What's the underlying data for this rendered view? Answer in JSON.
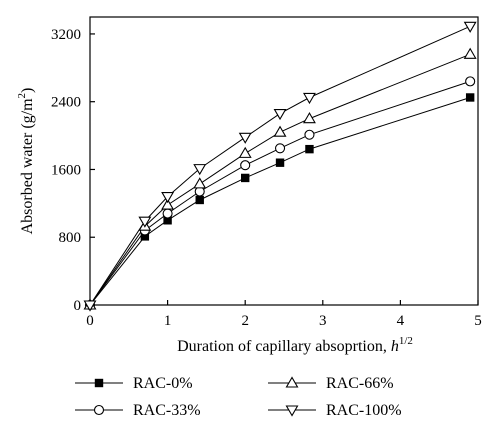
{
  "chart_data": {
    "type": "line",
    "xlabel_main": "Duration of capillary absoprtion, ",
    "xlabel_var": "h",
    "xlabel_exp": "1/2",
    "ylabel_main": "Absorbed water (g/m",
    "ylabel_sup": "2",
    "ylabel_end": ")",
    "xlim": [
      0,
      5
    ],
    "ylim": [
      0,
      3400
    ],
    "xticks": [
      "0",
      "1",
      "2",
      "3",
      "4",
      "5"
    ],
    "yticks": [
      "0",
      "800",
      "1600",
      "2400",
      "3200"
    ],
    "grid": false,
    "legend_position": "bottom",
    "series": [
      {
        "name": "RAC-0%",
        "marker": "filled-square",
        "x": [
          0,
          0.707,
          1,
          1.414,
          2,
          2.449,
          2.828,
          4.899
        ],
        "y": [
          0,
          810,
          1000,
          1240,
          1500,
          1680,
          1840,
          2450
        ]
      },
      {
        "name": "RAC-33%",
        "marker": "open-circle",
        "x": [
          0,
          0.707,
          1,
          1.414,
          2,
          2.449,
          2.828,
          4.899
        ],
        "y": [
          0,
          880,
          1080,
          1340,
          1650,
          1850,
          2010,
          2640
        ]
      },
      {
        "name": "RAC-66%",
        "marker": "open-triangle-up",
        "x": [
          0,
          0.707,
          1,
          1.414,
          2,
          2.449,
          2.828,
          4.899
        ],
        "y": [
          0,
          930,
          1180,
          1430,
          1790,
          2040,
          2200,
          2960
        ]
      },
      {
        "name": "RAC-100%",
        "marker": "open-triangle-down",
        "x": [
          0,
          0.707,
          1,
          1.414,
          2,
          2.449,
          2.828,
          4.899
        ],
        "y": [
          0,
          990,
          1280,
          1610,
          1980,
          2260,
          2450,
          3290
        ]
      }
    ]
  }
}
